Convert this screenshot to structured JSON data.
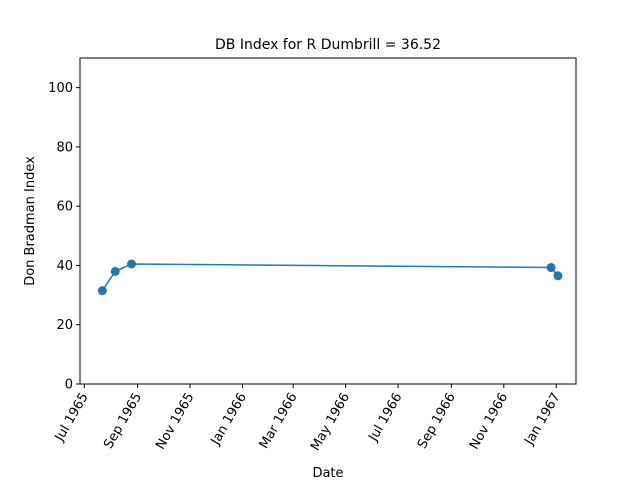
{
  "chart_data": {
    "type": "line",
    "title": "DB Index for R Dumbrill = 36.52",
    "xlabel": "Date",
    "ylabel": "Don Bradman Index",
    "xlim": [
      "1965-06-26",
      "1967-01-24"
    ],
    "ylim": [
      0,
      110
    ],
    "grid": false,
    "y_ticks": [
      0,
      20,
      40,
      60,
      80,
      100
    ],
    "x_ticks": [
      {
        "date": "1965-07-01",
        "label": "Jul 1965"
      },
      {
        "date": "1965-09-01",
        "label": "Sep 1965"
      },
      {
        "date": "1965-11-01",
        "label": "Nov 1965"
      },
      {
        "date": "1966-01-01",
        "label": "Jan 1966"
      },
      {
        "date": "1966-03-01",
        "label": "Mar 1966"
      },
      {
        "date": "1966-05-01",
        "label": "May 1966"
      },
      {
        "date": "1966-07-01",
        "label": "Jul 1966"
      },
      {
        "date": "1966-09-01",
        "label": "Sep 1966"
      },
      {
        "date": "1966-11-01",
        "label": "Nov 1966"
      },
      {
        "date": "1967-01-01",
        "label": "Jan 1967"
      }
    ],
    "series": [
      {
        "name": "DB Index",
        "color": "#1f77b4",
        "x": [
          "1965-07-22",
          "1965-08-06",
          "1965-08-25",
          "1966-12-26",
          "1967-01-03"
        ],
        "y": [
          31.5,
          38.0,
          40.5,
          39.3,
          36.52
        ]
      }
    ]
  }
}
